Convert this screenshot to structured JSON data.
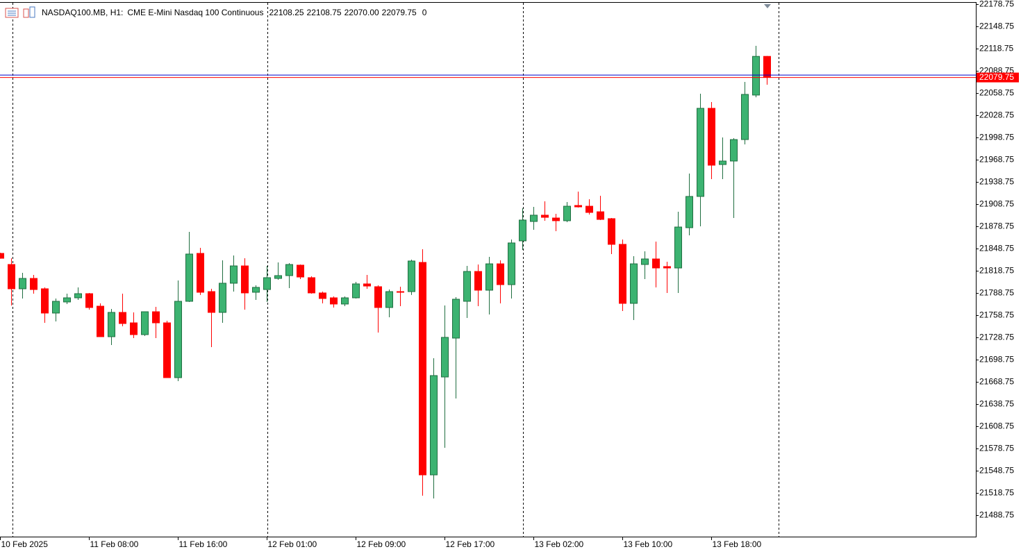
{
  "chart_data": {
    "type": "candlestick",
    "title": "NASDAQ100.MB, H1:",
    "subtitle": "CME E-Mini Nasdaq 100 Continuous",
    "ohlc_text": [
      "22108.25",
      "22108.75",
      "22070.00",
      "22079.75"
    ],
    "volume_text": "0",
    "categories": [
      "10 Feb 2025",
      null,
      null,
      null,
      null,
      null,
      null,
      null,
      "11 Feb 08:00",
      null,
      null,
      null,
      null,
      null,
      null,
      null,
      "11 Feb 16:00",
      null,
      null,
      null,
      null,
      null,
      null,
      null,
      "12 Feb 01:00",
      null,
      null,
      null,
      null,
      null,
      null,
      null,
      "12 Feb 09:00",
      null,
      null,
      null,
      null,
      null,
      null,
      null,
      "12 Feb 17:00",
      null,
      null,
      null,
      null,
      null,
      null,
      null,
      "13 Feb 02:00",
      null,
      null,
      null,
      null,
      null,
      null,
      null,
      "13 Feb 10:00",
      null,
      null,
      null,
      null,
      null,
      null,
      null,
      "13 Feb 18:00",
      null,
      null,
      null,
      null,
      null
    ],
    "open": [
      21842.2,
      21827.2,
      21794.4,
      21808.4,
      21794.4,
      21761.6,
      21776.6,
      21782.2,
      21787.8,
      21770.9,
      21729.7,
      21762.5,
      21748.4,
      21732.5,
      21763.4,
      21748.4,
      21674.4,
      21777.5,
      21842.2,
      21790.6,
      21762.5,
      21801.9,
      21825.3,
      21789.7,
      21793.4,
      21808.4,
      21812.2,
      21826.3,
      21809.4,
      21788.8,
      21782.2,
      21773.8,
      21782.2,
      21801.0,
      21797.2,
      21769.1,
      21790.6,
      21790.6,
      21830.0,
      21543.1,
      21675.3,
      21727.8,
      21777.5,
      21817.8,
      21792.5,
      21828.1,
      21800.0,
      21859.1,
      21885.3,
      21893.8,
      21890.0,
      21886.3,
      21906.9,
      21905.9,
      21898.4,
      21889.1,
      21854.4,
      21774.7,
      21827.2,
      21834.7,
      21824.4,
      21822.5,
      21876.9,
      21919.1,
      22038.1,
      21962.2,
      21966.9,
      21995.9,
      22056.0,
      22108.25
    ],
    "high": [
      21843.0,
      21835.6,
      21815.9,
      21813.1,
      21796.3,
      21781.3,
      21787.8,
      21796.3,
      21788.8,
      21774.7,
      21767.2,
      21787.8,
      21762.5,
      21763.4,
      21770.0,
      21751.3,
      21805.6,
      21871.3,
      21849.7,
      21794.4,
      21832.8,
      21839.4,
      21835.6,
      21799.1,
      21825.3,
      21830.0,
      21829.1,
      21827.2,
      21811.3,
      21790.6,
      21784.1,
      21784.1,
      21803.8,
      21813.1,
      21799.1,
      21793.4,
      21797.2,
      21833.8,
      21847.8,
      21700.6,
      21771.9,
      21783.1,
      21825.3,
      21827.2,
      21837.5,
      21832.8,
      21860.9,
      21903.1,
      21905.0,
      21912.5,
      21895.6,
      21911.6,
      21925.6,
      21915.3,
      21920.0,
      21890.0,
      21860.9,
      21838.4,
      21845.0,
      21858.1,
      21830.9,
      21898.4,
      21950.0,
      22057.8,
      22046.6,
      21998.8,
      21997.8,
      22073.8,
      22122.5,
      22108.75
    ],
    "low": [
      21835.0,
      21771.9,
      21781.3,
      21787.8,
      21748.4,
      21750.3,
      21773.8,
      21779.4,
      21766.3,
      21729.7,
      21718.4,
      21743.8,
      21727.8,
      21730.6,
      21727.8,
      21674.4,
      21669.7,
      21776.6,
      21786.0,
      21715.6,
      21748.4,
      21790.6,
      21766.3,
      21779.4,
      21776.6,
      21806.6,
      21795.3,
      21807.5,
      21787.8,
      21774.7,
      21769.1,
      21770.9,
      21781.3,
      21794.4,
      21735.3,
      21755.9,
      21770.9,
      21786.0,
      21515.0,
      21511.3,
      21579.7,
      21646.3,
      21755.0,
      21770.9,
      21759.7,
      21774.7,
      21781.3,
      21846.9,
      21874.1,
      21886.3,
      21872.2,
      21884.4,
      21904.1,
      21894.7,
      21887.2,
      21841.3,
      21764.4,
      21752.2,
      21807.5,
      21796.3,
      21788.8,
      21788.8,
      21866.6,
      21878.8,
      21942.5,
      21942.5,
      21890.0,
      21989.4,
      22053.0,
      22070.0
    ],
    "close": [
      21835.6,
      21794.4,
      21808.4,
      21793.4,
      21761.6,
      21777.5,
      21782.2,
      21787.8,
      21769.1,
      21729.7,
      21762.5,
      21747.5,
      21732.5,
      21763.4,
      21748.4,
      21674.4,
      21777.5,
      21841.3,
      21789.7,
      21762.5,
      21801.9,
      21825.3,
      21788.8,
      21796.3,
      21809.4,
      21812.2,
      21827.2,
      21810.3,
      21788.8,
      21781.3,
      21773.8,
      21782.2,
      21801.0,
      21798.1,
      21769.1,
      21790.6,
      21789.7,
      21831.9,
      21543.1,
      21677.2,
      21728.8,
      21780.3,
      21817.8,
      21792.5,
      21828.1,
      21800.0,
      21856.3,
      21887.2,
      21893.8,
      21890.9,
      21886.3,
      21905.9,
      21905.0,
      21897.5,
      21888.1,
      21854.4,
      21774.7,
      21828.1,
      21834.7,
      21822.5,
      21822.5,
      21877.8,
      21919.1,
      22038.1,
      21961.3,
      21966.9,
      21995.9,
      22056.9,
      22108.25,
      22079.75
    ],
    "up_color": "#3cb371",
    "up_edge_color": "#1f6e40",
    "down_color": "#ff0000",
    "last_price": 22079.75,
    "last_color": "#ff0000",
    "ask_price": 22083.0,
    "ask_color": "#0000cc",
    "ylim": [
      21459.69,
      22181.56
    ],
    "yticks": [
      22178.75,
      22148.75,
      22118.75,
      22088.75,
      22058.75,
      22028.75,
      21998.75,
      21968.75,
      21938.75,
      21908.75,
      21878.75,
      21848.75,
      21818.75,
      21788.75,
      21758.75,
      21728.75,
      21698.75,
      21668.75,
      21638.75,
      21608.75,
      21578.75,
      21548.75,
      21518.75,
      21488.75
    ],
    "grid": false
  }
}
